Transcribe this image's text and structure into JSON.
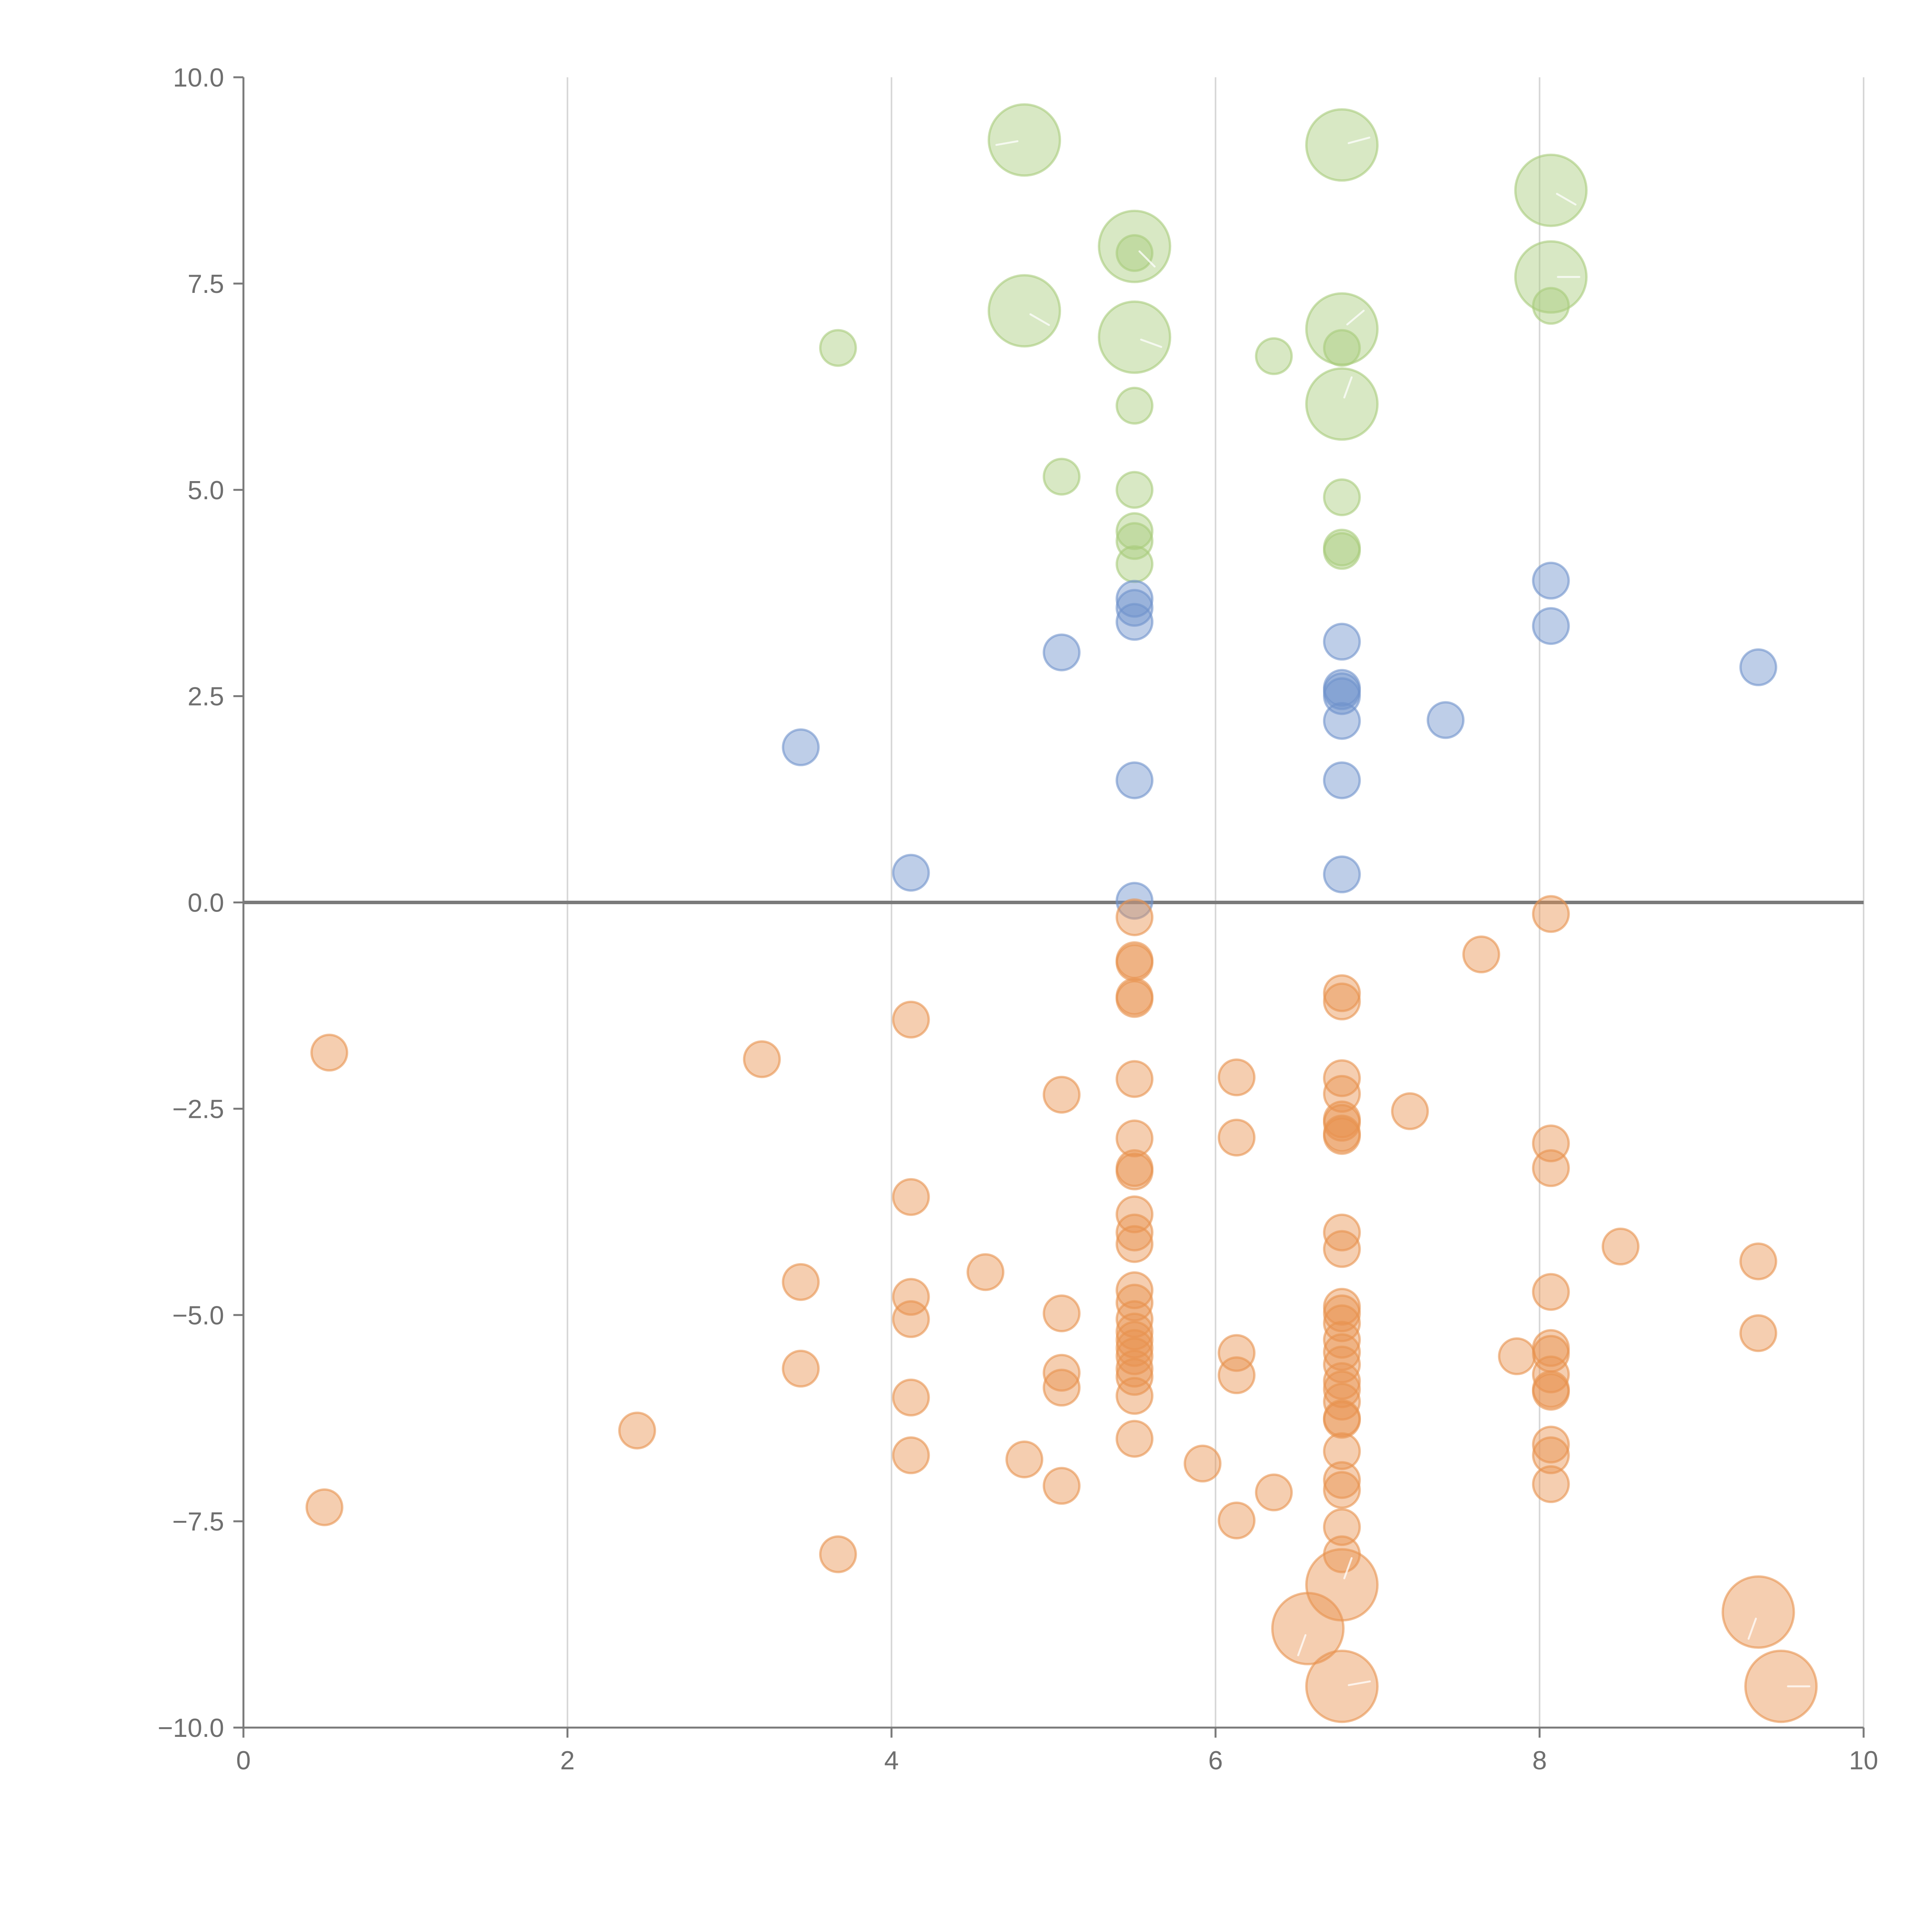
{
  "chart_data": {
    "type": "scatter",
    "title": "",
    "xlabel": "",
    "ylabel": "",
    "xlim": [
      0,
      10
    ],
    "ylim": [
      -10,
      10
    ],
    "grid": {
      "x": true,
      "y": false
    },
    "zero_line": true,
    "x_ticks": [
      0,
      2,
      4,
      6,
      8,
      10
    ],
    "y_ticks": [
      -10,
      -7.5,
      -5,
      -2.5,
      0,
      2.5,
      5,
      7.5,
      10
    ],
    "x_tick_labels": [
      "0",
      "2",
      "4",
      "6",
      "8",
      "10"
    ],
    "y_tick_labels": [
      "−10.0",
      "−7.5",
      "−5.0",
      "−2.5",
      "0.0",
      "2.5",
      "5.0",
      "7.5",
      "10.0"
    ],
    "colors": {
      "green": {
        "fill": "#a9cc7c",
        "stroke": "#a9cc7c"
      },
      "blue": {
        "fill": "#6f93cc",
        "stroke": "#6f93cc"
      },
      "orange": {
        "fill": "#e8924f",
        "stroke": "#e8924f"
      }
    },
    "size_scale": {
      "small": 1,
      "large": 2
    },
    "series": [
      {
        "name": "green-small",
        "color": "green",
        "size": "small",
        "points": [
          [
            3.67,
            6.72
          ],
          [
            5.5,
            7.87
          ],
          [
            6.36,
            6.62
          ],
          [
            5.5,
            6.02
          ],
          [
            5.05,
            5.16
          ],
          [
            5.5,
            5.0
          ],
          [
            5.5,
            4.5
          ],
          [
            5.5,
            4.38
          ],
          [
            5.5,
            4.1
          ],
          [
            6.78,
            6.72
          ],
          [
            6.78,
            4.91
          ],
          [
            6.78,
            4.3
          ],
          [
            6.78,
            4.26
          ],
          [
            8.07,
            7.23
          ]
        ]
      },
      {
        "name": "green-large",
        "color": "green",
        "size": "large",
        "marker_line": true,
        "points": [
          [
            4.82,
            9.24
          ],
          [
            5.5,
            7.95
          ],
          [
            4.82,
            7.17
          ],
          [
            5.5,
            6.85
          ],
          [
            6.78,
            9.18
          ],
          [
            6.78,
            6.95
          ],
          [
            6.78,
            6.04
          ],
          [
            8.07,
            8.63
          ],
          [
            8.07,
            7.58
          ]
        ],
        "line_angles": [
          190,
          315,
          330,
          340,
          15,
          40,
          70,
          330,
          0
        ]
      },
      {
        "name": "blue",
        "color": "blue",
        "size": "small",
        "points": [
          [
            3.44,
            1.88
          ],
          [
            4.12,
            0.36
          ],
          [
            5.05,
            3.03
          ],
          [
            5.5,
            3.68
          ],
          [
            5.5,
            3.57
          ],
          [
            5.5,
            3.4
          ],
          [
            5.5,
            1.48
          ],
          [
            5.5,
            0.02
          ],
          [
            6.78,
            3.16
          ],
          [
            6.78,
            2.6
          ],
          [
            6.78,
            2.56
          ],
          [
            6.78,
            2.5
          ],
          [
            6.78,
            2.2
          ],
          [
            6.78,
            1.48
          ],
          [
            6.78,
            0.34
          ],
          [
            7.42,
            2.21
          ],
          [
            8.07,
            3.9
          ],
          [
            8.07,
            3.35
          ],
          [
            9.35,
            2.85
          ]
        ]
      },
      {
        "name": "orange-small",
        "color": "orange",
        "size": "small",
        "points": [
          [
            0.53,
            -1.82
          ],
          [
            0.5,
            -7.33
          ],
          [
            2.43,
            -6.4
          ],
          [
            3.2,
            -1.9
          ],
          [
            3.44,
            -4.6
          ],
          [
            3.44,
            -5.65
          ],
          [
            3.67,
            -7.9
          ],
          [
            4.12,
            -1.42
          ],
          [
            4.12,
            -3.57
          ],
          [
            4.12,
            -4.78
          ],
          [
            4.12,
            -5.05
          ],
          [
            4.12,
            -6.0
          ],
          [
            4.12,
            -6.7
          ],
          [
            4.58,
            -4.48
          ],
          [
            4.82,
            -6.75
          ],
          [
            5.05,
            -2.33
          ],
          [
            5.05,
            -4.98
          ],
          [
            5.05,
            -5.7
          ],
          [
            5.05,
            -5.88
          ],
          [
            5.05,
            -7.07
          ],
          [
            5.5,
            -0.18
          ],
          [
            5.5,
            -0.7
          ],
          [
            5.5,
            -0.73
          ],
          [
            5.5,
            -1.14
          ],
          [
            5.5,
            -1.17
          ],
          [
            5.5,
            -2.14
          ],
          [
            5.5,
            -2.86
          ],
          [
            5.5,
            -3.22
          ],
          [
            5.5,
            -3.26
          ],
          [
            5.5,
            -3.78
          ],
          [
            5.5,
            -4.0
          ],
          [
            5.5,
            -4.14
          ],
          [
            5.5,
            -4.7
          ],
          [
            5.5,
            -4.85
          ],
          [
            5.5,
            -5.05
          ],
          [
            5.5,
            -5.2
          ],
          [
            5.5,
            -5.3
          ],
          [
            5.5,
            -5.4
          ],
          [
            5.5,
            -5.5
          ],
          [
            5.5,
            -5.65
          ],
          [
            5.5,
            -5.75
          ],
          [
            5.5,
            -5.98
          ],
          [
            5.5,
            -6.5
          ],
          [
            5.92,
            -6.8
          ],
          [
            6.13,
            -2.12
          ],
          [
            6.13,
            -2.85
          ],
          [
            6.13,
            -5.46
          ],
          [
            6.13,
            -5.73
          ],
          [
            6.13,
            -7.49
          ],
          [
            6.36,
            -7.15
          ],
          [
            6.78,
            -1.1
          ],
          [
            6.78,
            -1.2
          ],
          [
            6.78,
            -2.13
          ],
          [
            6.78,
            -2.32
          ],
          [
            6.78,
            -2.63
          ],
          [
            6.78,
            -2.67
          ],
          [
            6.78,
            -2.8
          ],
          [
            6.78,
            -2.83
          ],
          [
            6.78,
            -4.0
          ],
          [
            6.78,
            -4.2
          ],
          [
            6.78,
            -4.9
          ],
          [
            6.78,
            -4.98
          ],
          [
            6.78,
            -5.1
          ],
          [
            6.78,
            -5.3
          ],
          [
            6.78,
            -5.45
          ],
          [
            6.78,
            -5.6
          ],
          [
            6.78,
            -5.8
          ],
          [
            6.78,
            -5.9
          ],
          [
            6.78,
            -6.05
          ],
          [
            6.78,
            -6.25
          ],
          [
            6.78,
            -6.27
          ],
          [
            6.78,
            -6.65
          ],
          [
            6.78,
            -7.0
          ],
          [
            6.78,
            -7.12
          ],
          [
            6.78,
            -7.57
          ],
          [
            6.78,
            -7.9
          ],
          [
            7.2,
            -2.53
          ],
          [
            7.64,
            -0.63
          ],
          [
            7.86,
            -5.5
          ],
          [
            8.07,
            -0.14
          ],
          [
            8.07,
            -2.92
          ],
          [
            8.07,
            -3.22
          ],
          [
            8.07,
            -4.72
          ],
          [
            8.07,
            -5.4
          ],
          [
            8.07,
            -5.47
          ],
          [
            8.07,
            -5.72
          ],
          [
            8.07,
            -5.9
          ],
          [
            8.07,
            -5.93
          ],
          [
            8.07,
            -6.57
          ],
          [
            8.07,
            -6.7
          ],
          [
            8.07,
            -7.05
          ],
          [
            8.5,
            -4.17
          ],
          [
            9.35,
            -4.35
          ],
          [
            9.35,
            -5.22
          ]
        ]
      },
      {
        "name": "orange-large",
        "color": "orange",
        "size": "large",
        "marker_line": true,
        "points": [
          [
            6.57,
            -8.8
          ],
          [
            6.78,
            -8.27
          ],
          [
            6.78,
            -9.5
          ],
          [
            9.35,
            -8.6
          ],
          [
            9.49,
            -9.5
          ]
        ],
        "line_angles": [
          250,
          70,
          10,
          250,
          0
        ]
      }
    ]
  }
}
